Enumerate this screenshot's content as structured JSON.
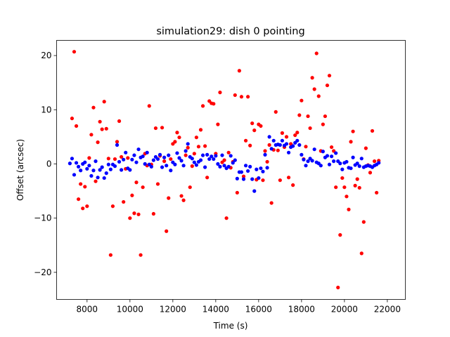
{
  "chart_data": {
    "type": "scatter",
    "title": "simulation29: dish 0 pointing",
    "xlabel": "Time (s)",
    "ylabel": "Offset (arcsec)",
    "xlim": [
      6580,
      22840
    ],
    "ylim": [
      -25.0,
      22.8
    ],
    "xticks": [
      8000,
      10000,
      12000,
      14000,
      16000,
      18000,
      20000,
      22000
    ],
    "xtick_labels": [
      "8000",
      "10000",
      "12000",
      "14000",
      "16000",
      "18000",
      "20000",
      "22000"
    ],
    "yticks": [
      -20,
      -10,
      0,
      10,
      20
    ],
    "ytick_labels": [
      "−20",
      "−10",
      "0",
      "10",
      "20"
    ],
    "grid": false,
    "legend": "none",
    "series": [
      {
        "color": "#ff0000",
        "points": [
          [
            7300,
            8.4
          ],
          [
            7400,
            20.7
          ],
          [
            7500,
            7.0
          ],
          [
            7600,
            -6.5
          ],
          [
            7700,
            -3.7
          ],
          [
            7800,
            -8.2
          ],
          [
            7900,
            -4.2
          ],
          [
            8000,
            -7.8
          ],
          [
            8100,
            1.1
          ],
          [
            8200,
            5.4
          ],
          [
            8300,
            10.4
          ],
          [
            8400,
            -3.2
          ],
          [
            8500,
            4.0
          ],
          [
            8600,
            7.8
          ],
          [
            8700,
            6.4
          ],
          [
            8800,
            11.5
          ],
          [
            8900,
            6.5
          ],
          [
            9000,
            1.0
          ],
          [
            9100,
            -16.8
          ],
          [
            9200,
            -7.8
          ],
          [
            9300,
            0.9
          ],
          [
            9400,
            4.1
          ],
          [
            9500,
            7.9
          ],
          [
            9600,
            1.3
          ],
          [
            9700,
            -7.0
          ],
          [
            9800,
            -0.9
          ],
          [
            9900,
            1.1
          ],
          [
            10000,
            -10.0
          ],
          [
            10100,
            -5.8
          ],
          [
            10200,
            -9.1
          ],
          [
            10300,
            -3.4
          ],
          [
            10400,
            -9.3
          ],
          [
            10500,
            -16.8
          ],
          [
            10600,
            -4.3
          ],
          [
            10700,
            1.9
          ],
          [
            10800,
            -0.3
          ],
          [
            10900,
            10.7
          ],
          [
            11000,
            -0.1
          ],
          [
            11100,
            -9.2
          ],
          [
            11200,
            6.6
          ],
          [
            11300,
            -3.7
          ],
          [
            11400,
            1.5
          ],
          [
            11500,
            6.7
          ],
          [
            11600,
            0.5
          ],
          [
            11700,
            -12.4
          ],
          [
            11800,
            -6.3
          ],
          [
            11900,
            0.9
          ],
          [
            12000,
            3.7
          ],
          [
            12100,
            4.1
          ],
          [
            12200,
            5.8
          ],
          [
            12300,
            4.9
          ],
          [
            12400,
            -5.9
          ],
          [
            12500,
            -6.7
          ],
          [
            12600,
            1.6
          ],
          [
            12700,
            3.0
          ],
          [
            12800,
            -4.3
          ],
          [
            12900,
            -0.4
          ],
          [
            13000,
            1.9
          ],
          [
            13100,
            4.9
          ],
          [
            13200,
            3.2
          ],
          [
            13300,
            6.3
          ],
          [
            13400,
            10.7
          ],
          [
            13500,
            3.3
          ],
          [
            13600,
            -2.5
          ],
          [
            13700,
            11.6
          ],
          [
            13800,
            11.2
          ],
          [
            13900,
            11.1
          ],
          [
            14000,
            1.9
          ],
          [
            14100,
            7.3
          ],
          [
            14200,
            13.2
          ],
          [
            14300,
            0.3
          ],
          [
            14400,
            0.7
          ],
          [
            14500,
            -10.0
          ],
          [
            14600,
            2.1
          ],
          [
            14700,
            -0.7
          ],
          [
            14800,
            0.4
          ],
          [
            14900,
            12.7
          ],
          [
            15000,
            -5.3
          ],
          [
            15100,
            17.2
          ],
          [
            15200,
            12.4
          ],
          [
            15300,
            -2.3
          ],
          [
            15400,
            4.3
          ],
          [
            15500,
            12.4
          ],
          [
            15600,
            3.4
          ],
          [
            15700,
            7.5
          ],
          [
            15800,
            6.2
          ],
          [
            15900,
            -2.9
          ],
          [
            16000,
            7.3
          ],
          [
            16100,
            7.0
          ],
          [
            16200,
            -3.0
          ],
          [
            16300,
            2.4
          ],
          [
            16400,
            0.4
          ],
          [
            16500,
            3.5
          ],
          [
            16600,
            -7.2
          ],
          [
            16700,
            2.6
          ],
          [
            16800,
            9.6
          ],
          [
            16900,
            2.5
          ],
          [
            17000,
            -3.0
          ],
          [
            17100,
            5.7
          ],
          [
            17200,
            3.1
          ],
          [
            17300,
            5.0
          ],
          [
            17400,
            -2.5
          ],
          [
            17500,
            3.7
          ],
          [
            17600,
            -3.9
          ],
          [
            17700,
            5.3
          ],
          [
            17800,
            5.8
          ],
          [
            17900,
            9.0
          ],
          [
            18000,
            11.7
          ],
          [
            18100,
            0.9
          ],
          [
            18200,
            3.2
          ],
          [
            18300,
            8.8
          ],
          [
            18400,
            6.6
          ],
          [
            18500,
            15.9
          ],
          [
            18600,
            13.8
          ],
          [
            18700,
            20.4
          ],
          [
            18800,
            12.5
          ],
          [
            18900,
            2.4
          ],
          [
            19000,
            7.3
          ],
          [
            19100,
            8.8
          ],
          [
            19200,
            14.5
          ],
          [
            19300,
            16.3
          ],
          [
            19400,
            3.1
          ],
          [
            19500,
            2.4
          ],
          [
            19600,
            -4.3
          ],
          [
            19700,
            -22.8
          ],
          [
            19800,
            -13.1
          ],
          [
            19900,
            -2.6
          ],
          [
            20000,
            -4.3
          ],
          [
            20100,
            -6.0
          ],
          [
            20200,
            -8.4
          ],
          [
            20300,
            4.1
          ],
          [
            20400,
            6.0
          ],
          [
            20500,
            -4.0
          ],
          [
            20600,
            -2.8
          ],
          [
            20700,
            -4.4
          ],
          [
            20800,
            -16.5
          ],
          [
            20900,
            -10.7
          ],
          [
            21000,
            2.9
          ],
          [
            21100,
            -0.2
          ],
          [
            21200,
            -1.6
          ],
          [
            21300,
            6.1
          ],
          [
            21400,
            0.5
          ],
          [
            21500,
            -5.3
          ],
          [
            21600,
            0.6
          ]
        ]
      },
      {
        "color": "#0000ff",
        "points": [
          [
            7200,
            0.1
          ],
          [
            7300,
            1.0
          ],
          [
            7400,
            -2.0
          ],
          [
            7500,
            0.2
          ],
          [
            7600,
            -0.5
          ],
          [
            7700,
            -1.2
          ],
          [
            7800,
            0.0
          ],
          [
            7900,
            0.3
          ],
          [
            8000,
            -0.9
          ],
          [
            8100,
            -0.3
          ],
          [
            8200,
            -2.2
          ],
          [
            8300,
            -1.2
          ],
          [
            8400,
            0.5
          ],
          [
            8500,
            -2.5
          ],
          [
            8600,
            -1.1
          ],
          [
            8700,
            -0.6
          ],
          [
            8800,
            -2.6
          ],
          [
            8900,
            -1.7
          ],
          [
            9000,
            -0.1
          ],
          [
            9100,
            -1.0
          ],
          [
            9200,
            -0.1
          ],
          [
            9300,
            -0.4
          ],
          [
            9400,
            3.5
          ],
          [
            9500,
            0.4
          ],
          [
            9600,
            -1.1
          ],
          [
            9700,
            0.8
          ],
          [
            9800,
            2.1
          ],
          [
            9900,
            -0.8
          ],
          [
            10000,
            -1.1
          ],
          [
            10100,
            0.8
          ],
          [
            10200,
            1.6
          ],
          [
            10300,
            0.3
          ],
          [
            10400,
            2.7
          ],
          [
            10500,
            1.2
          ],
          [
            10600,
            1.4
          ],
          [
            10700,
            0.0
          ],
          [
            10800,
            2.1
          ],
          [
            10900,
            -0.1
          ],
          [
            11000,
            -0.5
          ],
          [
            11100,
            0.7
          ],
          [
            11200,
            1.3
          ],
          [
            11300,
            0.9
          ],
          [
            11400,
            1.7
          ],
          [
            11500,
            -0.6
          ],
          [
            11600,
            1.2
          ],
          [
            11700,
            -0.3
          ],
          [
            11800,
            1.6
          ],
          [
            11900,
            -1.2
          ],
          [
            12000,
            0.3
          ],
          [
            12100,
            -0.1
          ],
          [
            12200,
            2.0
          ],
          [
            12300,
            1.1
          ],
          [
            12400,
            0.6
          ],
          [
            12500,
            -0.3
          ],
          [
            12600,
            2.4
          ],
          [
            12700,
            3.7
          ],
          [
            12800,
            1.3
          ],
          [
            12900,
            1.0
          ],
          [
            13000,
            0.3
          ],
          [
            13100,
            -0.2
          ],
          [
            13200,
            0.4
          ],
          [
            13300,
            0.7
          ],
          [
            13400,
            1.6
          ],
          [
            13500,
            -0.6
          ],
          [
            13600,
            1.7
          ],
          [
            13700,
            0.9
          ],
          [
            13800,
            1.4
          ],
          [
            13900,
            0.9
          ],
          [
            14000,
            1.5
          ],
          [
            14100,
            0.0
          ],
          [
            14200,
            -0.5
          ],
          [
            14300,
            1.6
          ],
          [
            14400,
            -0.3
          ],
          [
            14500,
            -0.8
          ],
          [
            14600,
            -0.5
          ],
          [
            14700,
            1.5
          ],
          [
            14800,
            0.2
          ],
          [
            14900,
            0.7
          ],
          [
            15000,
            -2.7
          ],
          [
            15100,
            -1.5
          ],
          [
            15200,
            -1.5
          ],
          [
            15300,
            -2.8
          ],
          [
            15400,
            -0.3
          ],
          [
            15500,
            -1.3
          ],
          [
            15600,
            -0.5
          ],
          [
            15700,
            -2.8
          ],
          [
            15800,
            -5.0
          ],
          [
            15900,
            -1.0
          ],
          [
            16000,
            -2.6
          ],
          [
            16100,
            -0.8
          ],
          [
            16200,
            -1.4
          ],
          [
            16300,
            1.7
          ],
          [
            16400,
            -0.7
          ],
          [
            16500,
            5.0
          ],
          [
            16600,
            2.8
          ],
          [
            16700,
            4.3
          ],
          [
            16800,
            3.5
          ],
          [
            16900,
            3.6
          ],
          [
            17000,
            3.5
          ],
          [
            17100,
            4.3
          ],
          [
            17200,
            3.4
          ],
          [
            17300,
            3.7
          ],
          [
            17400,
            2.1
          ],
          [
            17500,
            3.1
          ],
          [
            17600,
            3.3
          ],
          [
            17700,
            3.9
          ],
          [
            17800,
            4.3
          ],
          [
            17900,
            3.5
          ],
          [
            18000,
            1.7
          ],
          [
            18100,
            0.8
          ],
          [
            18200,
            -0.3
          ],
          [
            18300,
            0.5
          ],
          [
            18400,
            1.0
          ],
          [
            18500,
            0.6
          ],
          [
            18600,
            2.7
          ],
          [
            18700,
            0.3
          ],
          [
            18800,
            0.1
          ],
          [
            18900,
            -0.3
          ],
          [
            19000,
            2.3
          ],
          [
            19100,
            1.2
          ],
          [
            19200,
            1.5
          ],
          [
            19300,
            -0.1
          ],
          [
            19400,
            1.4
          ],
          [
            19500,
            0.5
          ],
          [
            19600,
            2.0
          ],
          [
            19700,
            0.5
          ],
          [
            19800,
            0.1
          ],
          [
            19900,
            -1.0
          ],
          [
            20000,
            0.2
          ],
          [
            20100,
            0.4
          ],
          [
            20200,
            -0.7
          ],
          [
            20300,
            -0.8
          ],
          [
            20400,
            1.2
          ],
          [
            20500,
            -0.2
          ],
          [
            20600,
            0.1
          ],
          [
            20700,
            -0.4
          ],
          [
            20800,
            1.0
          ],
          [
            20900,
            -0.6
          ],
          [
            21000,
            -0.4
          ],
          [
            21100,
            -0.3
          ],
          [
            21200,
            -0.4
          ],
          [
            21300,
            -0.6
          ],
          [
            21400,
            -0.3
          ],
          [
            21500,
            -0.1
          ],
          [
            21600,
            0.2
          ]
        ]
      }
    ]
  }
}
